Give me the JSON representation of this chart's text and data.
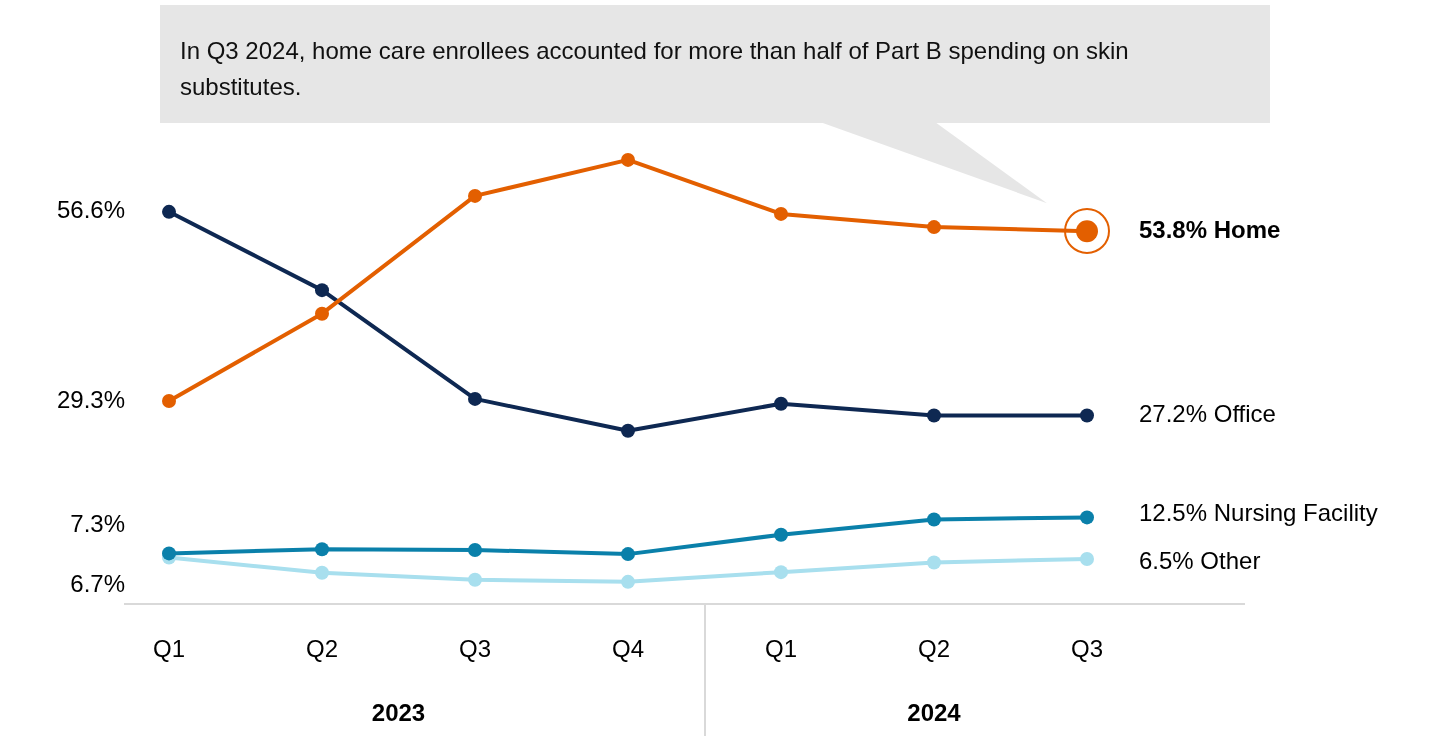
{
  "chart_data": {
    "type": "line",
    "categories": [
      "Q1",
      "Q2",
      "Q3",
      "Q4",
      "Q1",
      "Q2",
      "Q3"
    ],
    "marker": "circle",
    "line_style": "solid",
    "grid": false,
    "legend": false,
    "annotations": [
      "In Q3 2024, home care enrollees accounted for more than half of Part B spending on skin substitutes.",
      "2023",
      "2024"
    ],
    "series": [
      {
        "name": "Home",
        "color": "#e35f00",
        "values": [
          29.3,
          41.9,
          58.9,
          64.1,
          56.3,
          54.4,
          53.8
        ],
        "value_labels": [
          "29.3%",
          null,
          null,
          null,
          null,
          null,
          "53.8%"
        ]
      },
      {
        "name": "Office",
        "color": "#0e2852",
        "values": [
          56.6,
          45.3,
          29.6,
          25.0,
          28.9,
          27.2,
          27.2
        ],
        "value_labels": [
          "56.6%",
          null,
          null,
          null,
          null,
          null,
          "27.2%"
        ]
      },
      {
        "name": "Nursing Facility",
        "color": "#0a80aa",
        "values": [
          7.3,
          7.9,
          7.8,
          7.2,
          10.0,
          12.2,
          12.5
        ],
        "value_labels": [
          "7.3%",
          null,
          null,
          null,
          null,
          null,
          "12.5%"
        ]
      },
      {
        "name": "Other",
        "color": "#a8dfee",
        "values": [
          6.7,
          4.5,
          3.5,
          3.2,
          4.6,
          6.0,
          6.5
        ],
        "value_labels": [
          "6.7%",
          null,
          null,
          null,
          null,
          null,
          "6.5%"
        ]
      }
    ]
  }
}
